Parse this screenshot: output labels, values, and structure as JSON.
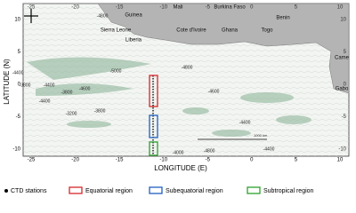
{
  "map": {
    "countries": [
      "Mali",
      "Burkina Faso",
      "Guinea",
      "Benin",
      "Sierra Leone",
      "Cote d'Ivoire",
      "Ghana",
      "Togo",
      "Liberia",
      "Came",
      "Gabo"
    ],
    "x_label": "LONGITUDE (E)",
    "y_label": "LATITUDE (N)",
    "xticks": [
      -25,
      -20,
      -15,
      -10,
      -5,
      0,
      5,
      10
    ],
    "yticks": [
      10,
      5,
      0,
      -5,
      -10
    ],
    "contour_labels": [
      "-4800",
      "-5000",
      "-4400",
      "-3800",
      "-4400",
      "-3800",
      "-4600",
      "-4400",
      "-3200",
      "-3800",
      "-4800",
      "-4600",
      "-4400",
      "-4800",
      "-4400",
      "-4000"
    ],
    "scale_bar": "1000 km"
  },
  "legend": [
    "CTD stations",
    "Equatorial region",
    "Subequatorial region",
    "Subtropical region"
  ]
}
